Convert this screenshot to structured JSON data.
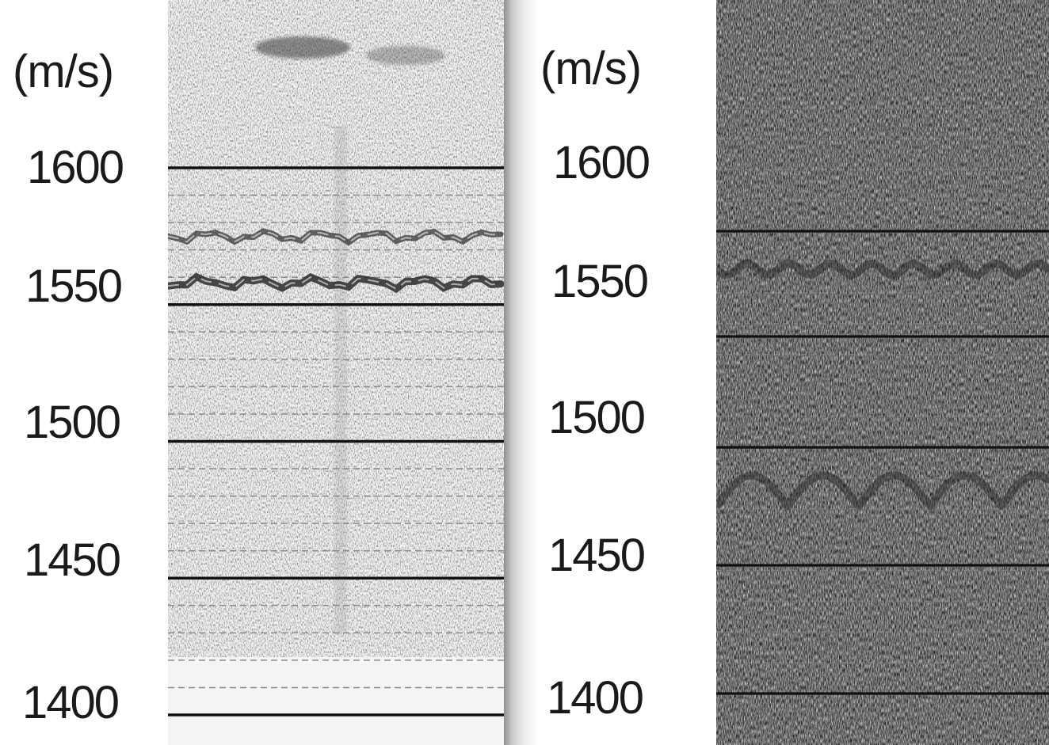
{
  "chart_data": [
    {
      "type": "heatmap",
      "title": "",
      "xlabel": "",
      "ylabel": "(m/s)",
      "ylim": [
        1400,
        1600
      ],
      "yticks": [
        1600,
        1550,
        1500,
        1450,
        1400
      ],
      "yticks_labels": [
        "1600",
        "1550",
        "1500",
        "1450",
        "1400"
      ],
      "grid": "solid major lines at labeled ticks, dashed minor lines",
      "colormap": "grayscale (white background, dark = high intensity)",
      "ridges": [
        {
          "velocity": 1575
        },
        {
          "velocity": 1558
        }
      ]
    },
    {
      "type": "heatmap",
      "title": "",
      "xlabel": "",
      "ylabel": "(m/s)",
      "ylim": [
        1400,
        1600
      ],
      "yticks": [
        1600,
        1550,
        1500,
        1450,
        1400
      ],
      "yticks_labels": [
        "1600",
        "1550",
        "1500",
        "1450",
        "1400"
      ],
      "grid": "solid horizontal lines, dashed minor lines",
      "colormap": "grayscale noisy",
      "ridges": [
        {
          "velocity": 1545
        },
        {
          "velocity": 1478
        }
      ]
    }
  ],
  "panels": {
    "left": {
      "unit_label": "(m/s)",
      "ticks": [
        "1600",
        "1550",
        "1500",
        "1450",
        "1400"
      ]
    },
    "right": {
      "unit_label": "(m/s)",
      "ticks": [
        "1600",
        "1550",
        "1500",
        "1450",
        "1400"
      ]
    }
  },
  "colors": {
    "text": "#1a1a1a",
    "grid": "#111111",
    "minor_grid": "#8a8a8a"
  }
}
